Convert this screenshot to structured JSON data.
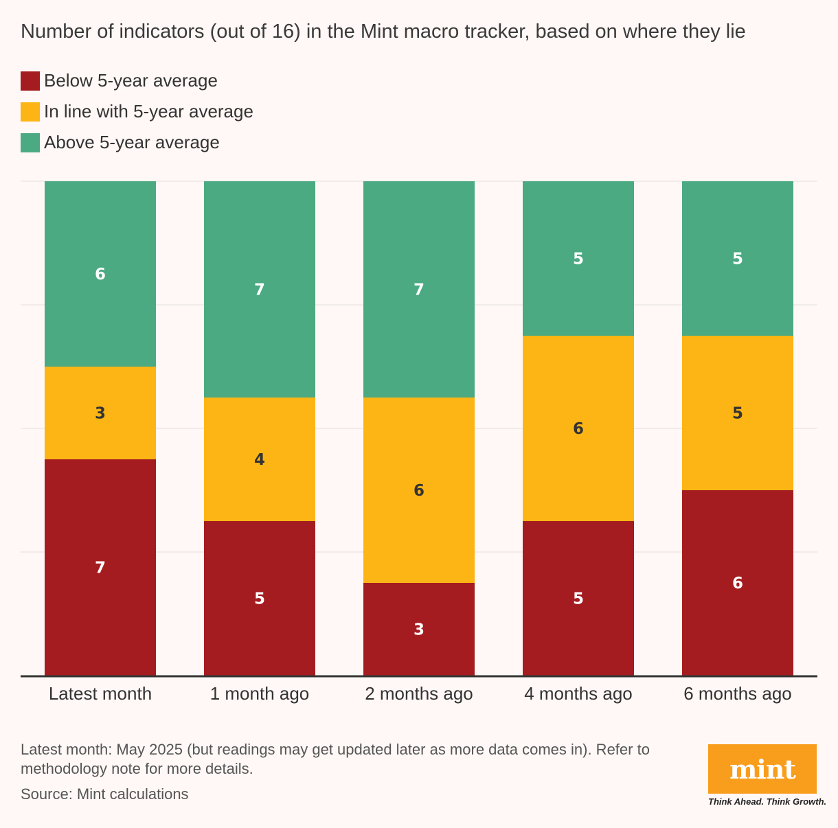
{
  "chart_data": {
    "type": "bar",
    "stacked": true,
    "title": "Number of indicators (out of 16) in the Mint macro tracker, based on where they lie",
    "categories": [
      "Latest month",
      "1 month ago",
      "2 months ago",
      "4 months ago",
      "6 months ago"
    ],
    "series": [
      {
        "name": "Below 5-year average",
        "color": "#a51c20",
        "label_color": "#ffffff",
        "values": [
          7,
          5,
          3,
          5,
          6
        ]
      },
      {
        "name": "In line with 5-year average",
        "color": "#fdb515",
        "label_color": "#333333",
        "values": [
          3,
          4,
          6,
          6,
          5
        ]
      },
      {
        "name": "Above 5-year average",
        "color": "#4baa82",
        "label_color": "#ffffff",
        "values": [
          6,
          7,
          7,
          5,
          5
        ]
      }
    ],
    "ylim": [
      0,
      16
    ],
    "gridlines": [
      0,
      4,
      8,
      12,
      16
    ],
    "xlabel": "",
    "ylabel": "",
    "legend_position": "top-left"
  },
  "footnote": "Latest month: May 2025 (but readings may get updated later as more data comes in). Refer to methodology note for more details.",
  "source": "Source: Mint calculations",
  "logo": {
    "text": "mint",
    "tagline": "Think Ahead. Think Growth.",
    "color": "#f99d1c"
  }
}
